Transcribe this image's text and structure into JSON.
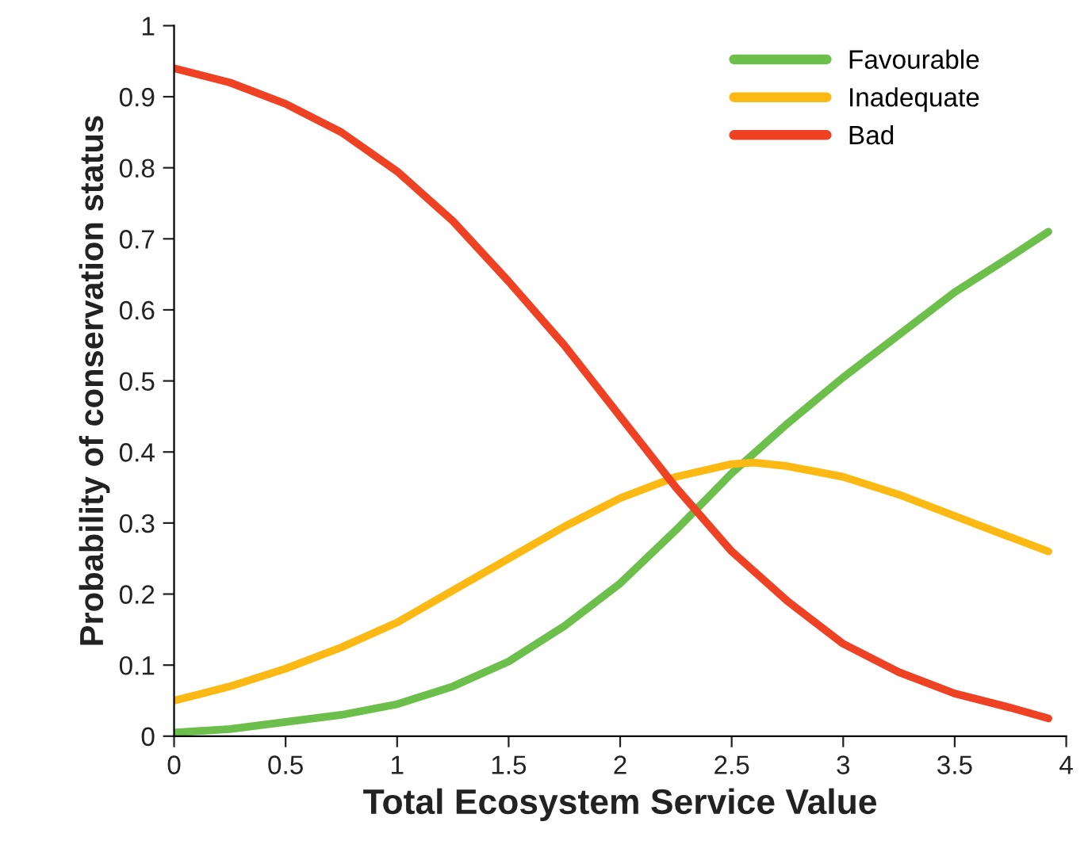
{
  "chart_data": {
    "type": "line",
    "xlabel": "Total Ecosystem Service Value",
    "ylabel": "Probability of conservation status",
    "xlim": [
      0,
      4
    ],
    "xticks": [
      0,
      0.5,
      1,
      1.5,
      2,
      2.5,
      3,
      3.5,
      4
    ],
    "ylim": [
      0,
      1
    ],
    "yticks": [
      0,
      0.1,
      0.2,
      0.3,
      0.4,
      0.5,
      0.6,
      0.7,
      0.8,
      0.9,
      1
    ],
    "grid": false,
    "legend": "top right",
    "marker": "none",
    "line_style": "solid",
    "series": [
      {
        "name": "Favourable",
        "color": "#6cbf4b",
        "x": [
          0,
          0.25,
          0.5,
          0.75,
          1,
          1.25,
          1.5,
          1.75,
          2,
          2.25,
          2.5,
          2.75,
          3,
          3.25,
          3.5,
          3.75,
          3.92
        ],
        "values": [
          0.005,
          0.01,
          0.02,
          0.03,
          0.045,
          0.07,
          0.105,
          0.155,
          0.215,
          0.29,
          0.37,
          0.44,
          0.505,
          0.565,
          0.625,
          0.675,
          0.71
        ]
      },
      {
        "name": "Inadequate",
        "color": "#fdb913",
        "x": [
          0,
          0.25,
          0.5,
          0.75,
          1,
          1.25,
          1.5,
          1.75,
          2,
          2.25,
          2.5,
          2.6,
          2.75,
          3,
          3.25,
          3.5,
          3.75,
          3.92
        ],
        "values": [
          0.05,
          0.07,
          0.095,
          0.125,
          0.16,
          0.205,
          0.25,
          0.295,
          0.335,
          0.365,
          0.383,
          0.385,
          0.38,
          0.365,
          0.34,
          0.31,
          0.28,
          0.26
        ]
      },
      {
        "name": "Bad",
        "color": "#ef4123",
        "x": [
          0,
          0.25,
          0.5,
          0.75,
          1,
          1.25,
          1.5,
          1.75,
          2,
          2.25,
          2.5,
          2.75,
          3,
          3.25,
          3.5,
          3.75,
          3.92
        ],
        "values": [
          0.94,
          0.92,
          0.89,
          0.85,
          0.795,
          0.725,
          0.64,
          0.55,
          0.45,
          0.35,
          0.26,
          0.19,
          0.13,
          0.09,
          0.06,
          0.04,
          0.025
        ]
      }
    ]
  }
}
